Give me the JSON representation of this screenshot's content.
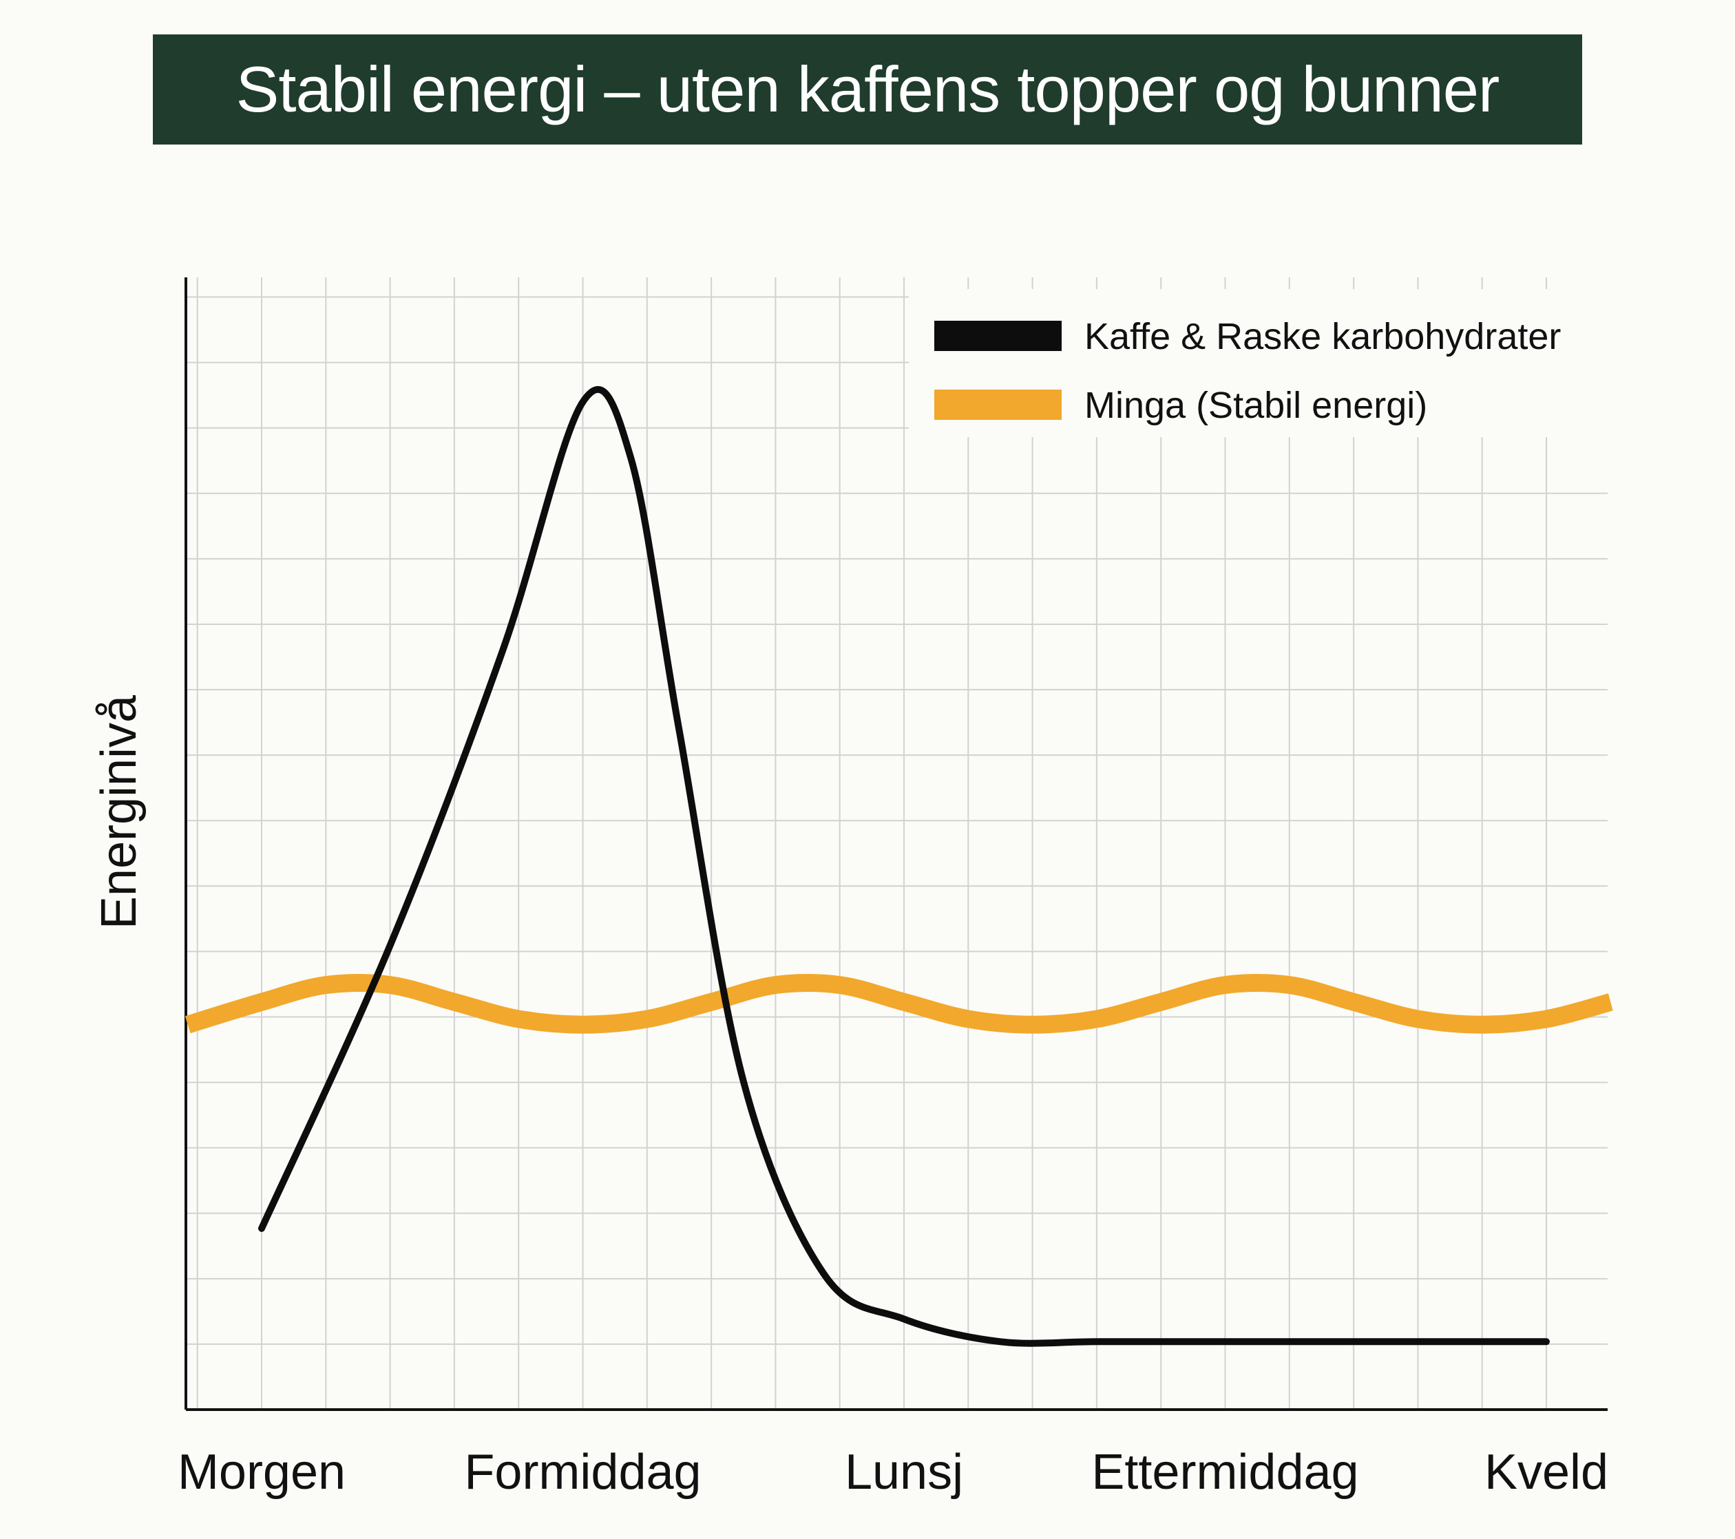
{
  "title": "Stabil energi – uten kaffens topper og bunner",
  "colors": {
    "banner": "#1f3c2d",
    "banner_text": "#ffffff",
    "background": "#fbfbf8",
    "grid": "#d2d2d2",
    "axis": "#111111",
    "kaffe": "#0d0d0d",
    "minga": "#f2a82c"
  },
  "chart_data": {
    "type": "line",
    "title": "Stabil energi – uten kaffens topper og bunner",
    "xlabel": "",
    "ylabel": "Energinivå",
    "categories": [
      "Morgen",
      "Formiddag",
      "Lunsj",
      "Ettermiddag",
      "Kveld"
    ],
    "grid": true,
    "legend_position": "top-right",
    "xlim": [
      0,
      5
    ],
    "ylim": [
      0,
      10
    ],
    "series": [
      {
        "name": "Kaffe & Raske karbohydrater",
        "color": "#0d0d0d",
        "x": [
          0,
          0.4,
          0.75,
          1.0,
          1.15,
          1.3,
          1.5,
          1.75,
          2.0,
          2.3,
          2.6,
          3.0,
          3.5,
          4.0
        ],
        "y": [
          1.6,
          4.1,
          6.7,
          8.9,
          8.4,
          6.0,
          2.9,
          1.2,
          0.8,
          0.6,
          0.6,
          0.6,
          0.6,
          0.6
        ]
      },
      {
        "name": "Minga (Stabil energi)",
        "color": "#f2a82c",
        "x": [
          -0.23,
          0.0,
          0.2,
          0.4,
          0.6,
          0.8,
          1.0,
          1.2,
          1.4,
          1.6,
          1.8,
          2.0,
          2.2,
          2.4,
          2.6,
          2.8,
          3.0,
          3.2,
          3.4,
          3.6,
          3.8,
          4.0,
          4.2
        ],
        "y": [
          3.4,
          3.6,
          3.75,
          3.75,
          3.6,
          3.45,
          3.4,
          3.45,
          3.6,
          3.75,
          3.75,
          3.6,
          3.45,
          3.4,
          3.45,
          3.6,
          3.75,
          3.75,
          3.6,
          3.45,
          3.4,
          3.45,
          3.6
        ]
      }
    ]
  }
}
